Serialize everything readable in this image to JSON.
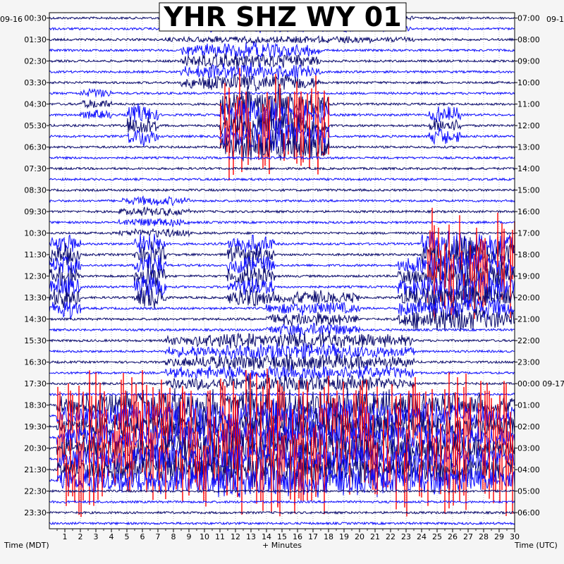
{
  "chart_data": {
    "type": "line",
    "title": "YHR SHZ WY 01",
    "left_date": "09-16",
    "right_date": "09-1",
    "xlabel": "+ Minutes",
    "left_axis_label": "Time (MDT)",
    "right_axis_label": "Time (UTC)",
    "xlim": [
      0,
      30
    ],
    "x_ticks": [
      "1",
      "2",
      "3",
      "4",
      "5",
      "6",
      "7",
      "8",
      "9",
      "10",
      "11",
      "12",
      "13",
      "14",
      "15",
      "16",
      "17",
      "18",
      "19",
      "20",
      "21",
      "22",
      "23",
      "24",
      "25",
      "26",
      "27",
      "28",
      "29",
      "30"
    ],
    "left_ticks": [
      "00:30",
      "01:30",
      "02:30",
      "03:30",
      "04:30",
      "05:30",
      "06:30",
      "07:30",
      "08:30",
      "09:30",
      "10:30",
      "11:30",
      "12:30",
      "13:30",
      "14:30",
      "15:30",
      "16:30",
      "17:30",
      "18:30",
      "19:30",
      "20:30",
      "21:30",
      "22:30",
      "23:30"
    ],
    "right_ticks": [
      "07:00",
      "08:00",
      "09:00",
      "10:00",
      "11:00",
      "12:00",
      "13:00",
      "14:00",
      "15:00",
      "16:00",
      "17:00",
      "18:00",
      "19:00",
      "20:00",
      "21:00",
      "22:00",
      "23:00",
      "00:00 09-17",
      "01:00",
      "02:00",
      "03:00",
      "04:00",
      "05:00",
      "06:00"
    ],
    "trace_count": 48,
    "trace_colors": [
      "#0b0b6e",
      "#1010ff"
    ],
    "clip_color": "#ff0000",
    "grid": true,
    "events": [
      {
        "traces": [
          0,
          2
        ],
        "from_min": 7.5,
        "to_min": 23.5,
        "amp": 0.6
      },
      {
        "traces": [
          3,
          6
        ],
        "from_min": 8.5,
        "to_min": 17.5,
        "amp": 1.8
      },
      {
        "traces": [
          7,
          9
        ],
        "from_min": 2.0,
        "to_min": 4.0,
        "amp": 1.0
      },
      {
        "traces": [
          8,
          12
        ],
        "from_min": 11.0,
        "to_min": 18.0,
        "amp": 4.0,
        "clip": true
      },
      {
        "traces": [
          9,
          11
        ],
        "from_min": 5.0,
        "to_min": 7.0,
        "amp": 2.5
      },
      {
        "traces": [
          9,
          11
        ],
        "from_min": 24.5,
        "to_min": 26.5,
        "amp": 2.0
      },
      {
        "traces": [
          17,
          20
        ],
        "from_min": 4.5,
        "to_min": 9.0,
        "amp": 0.9
      },
      {
        "traces": [
          21,
          25
        ],
        "from_min": 24.0,
        "to_min": 30.0,
        "amp": 4.0,
        "clip": true
      },
      {
        "traces": [
          21,
          27
        ],
        "from_min": 0.0,
        "to_min": 2.0,
        "amp": 2.5
      },
      {
        "traces": [
          21,
          26
        ],
        "from_min": 5.5,
        "to_min": 7.5,
        "amp": 3.0
      },
      {
        "traces": [
          21,
          26
        ],
        "from_min": 11.5,
        "to_min": 14.5,
        "amp": 2.5
      },
      {
        "traces": [
          23,
          28
        ],
        "from_min": 22.5,
        "to_min": 30.0,
        "amp": 3.0
      },
      {
        "traces": [
          26,
          30
        ],
        "from_min": 14.0,
        "to_min": 20.0,
        "amp": 1.5
      },
      {
        "traces": [
          30,
          34
        ],
        "from_min": 7.5,
        "to_min": 23.5,
        "amp": 1.8
      },
      {
        "traces": [
          36,
          43
        ],
        "from_min": 0.5,
        "to_min": 30.0,
        "amp": 4.0,
        "clip": true
      }
    ]
  }
}
